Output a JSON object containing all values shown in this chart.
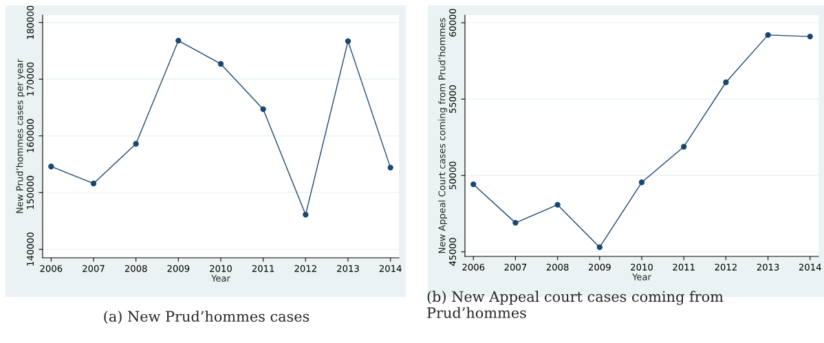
{
  "chart_data": [
    {
      "type": "line",
      "title": "(a) New Prud’hommes cases",
      "xlabel": "Year",
      "ylabel": "New Prud’hommes cases per year",
      "x": [
        2006,
        2007,
        2008,
        2009,
        2010,
        2011,
        2012,
        2013,
        2014
      ],
      "series": [
        {
          "color": "#1a476f",
          "values": [
            154600,
            151600,
            158600,
            176800,
            172700,
            164700,
            146100,
            176700,
            154400
          ]
        }
      ],
      "xlim": [
        2005.8,
        2014.2
      ],
      "ylim": [
        138500,
        181300
      ],
      "xticks": [
        2006,
        2007,
        2008,
        2009,
        2010,
        2011,
        2012,
        2013,
        2014
      ],
      "yticks": [
        140000,
        150000,
        160000,
        170000,
        180000
      ],
      "grid": "y",
      "marker": "circle",
      "line_style": "solid"
    },
    {
      "type": "line",
      "title": "(b) New Appeal court cases coming from Prud’hommes",
      "xlabel": "Year",
      "ylabel": "New Appeal Court cases coming from Prud’hommes",
      "x": [
        2006,
        2007,
        2008,
        2009,
        2010,
        2011,
        2012,
        2013,
        2014
      ],
      "series": [
        {
          "color": "#1a476f",
          "values": [
            49420,
            46900,
            48080,
            45300,
            49550,
            51880,
            56100,
            59200,
            59100
          ]
        }
      ],
      "xlim": [
        2005.8,
        2014.2
      ],
      "ylim": [
        44700,
        60500
      ],
      "xticks": [
        2006,
        2007,
        2008,
        2009,
        2010,
        2011,
        2012,
        2013,
        2014
      ],
      "yticks": [
        45000,
        50000,
        55000,
        60000
      ],
      "grid": "y",
      "marker": "circle",
      "line_style": "solid"
    }
  ]
}
